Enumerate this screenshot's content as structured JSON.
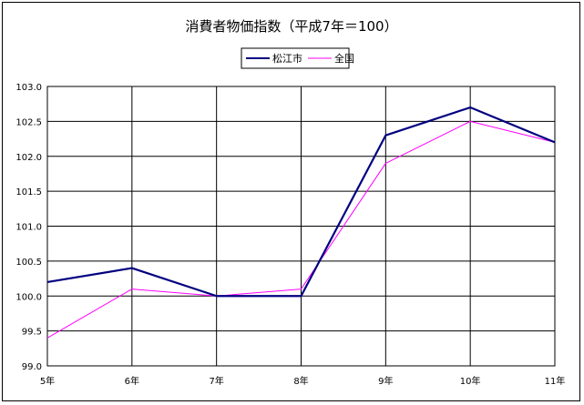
{
  "chart_data": {
    "type": "line",
    "title": "消費者物価指数（平成7年＝100）",
    "categories": [
      "5年",
      "6年",
      "7年",
      "8年",
      "9年",
      "10年",
      "11年"
    ],
    "ylim": [
      99.0,
      103.0
    ],
    "yticks": [
      "99.0",
      "99.5",
      "100.0",
      "100.5",
      "101.0",
      "101.5",
      "102.0",
      "102.5",
      "103.0"
    ],
    "ytick_values": [
      99.0,
      99.5,
      100.0,
      100.5,
      101.0,
      101.5,
      102.0,
      102.5,
      103.0
    ],
    "grid": true,
    "legend_position": "top-center",
    "series": [
      {
        "name": "松江市",
        "color": "#000080",
        "values": [
          100.2,
          100.4,
          100.0,
          100.0,
          102.3,
          102.7,
          102.2
        ]
      },
      {
        "name": "全国",
        "color": "#ff00ff",
        "values": [
          99.4,
          100.1,
          100.0,
          100.1,
          101.9,
          102.5,
          102.2
        ]
      }
    ]
  }
}
